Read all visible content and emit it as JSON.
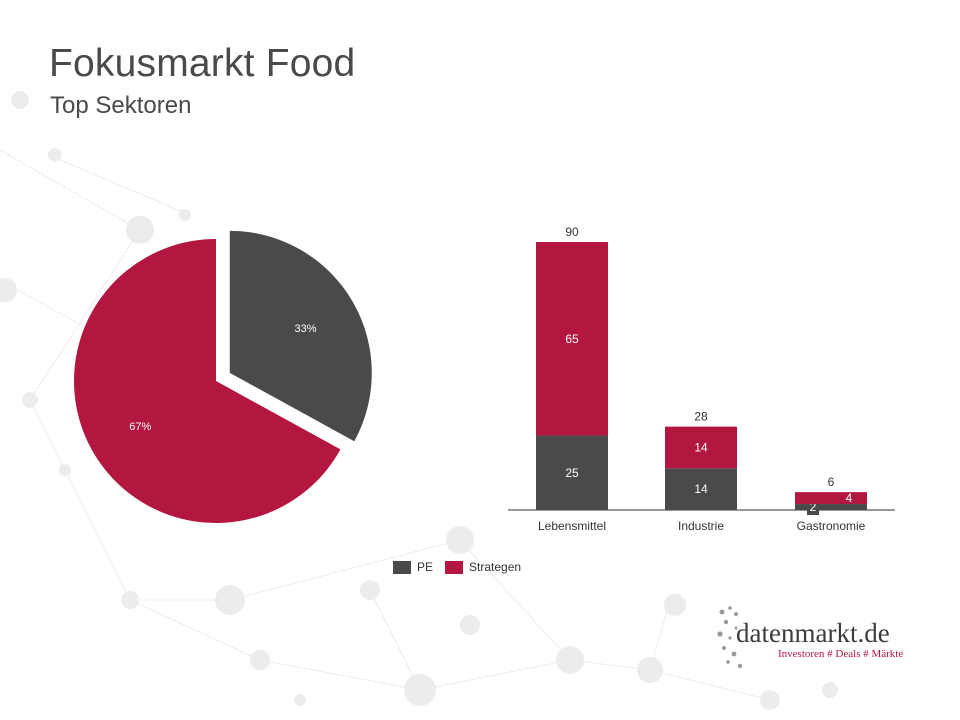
{
  "header": {
    "title": "Fokusmarkt Food",
    "subtitle": "Top Sektoren"
  },
  "colors": {
    "pe": "#4a4a4a",
    "strategen": "#b3163f",
    "text": "#4a4a4a"
  },
  "legend": [
    {
      "label": "PE",
      "color": "#4a4a4a"
    },
    {
      "label": "Strategen",
      "color": "#b3163f"
    }
  ],
  "logo": {
    "name": "datenmarkt.de",
    "tagline": "Investoren # Deals # Märkte"
  },
  "chart_data": [
    {
      "type": "pie",
      "slices": [
        {
          "label": "PE",
          "value": 33,
          "display": "33%",
          "color": "#4a4a4a",
          "exploded": true
        },
        {
          "label": "Strategen",
          "value": 67,
          "display": "67%",
          "color": "#b3163f",
          "exploded": false
        }
      ]
    },
    {
      "type": "bar",
      "stacked": true,
      "categories": [
        "Lebensmittel",
        "Industrie",
        "Gastronomie"
      ],
      "series": [
        {
          "name": "PE",
          "values": [
            25,
            14,
            2
          ],
          "color": "#4a4a4a"
        },
        {
          "name": "Strategen",
          "values": [
            65,
            14,
            4
          ],
          "color": "#b3163f"
        }
      ],
      "totals": [
        90,
        28,
        6
      ],
      "ylim": [
        0,
        90
      ]
    }
  ]
}
